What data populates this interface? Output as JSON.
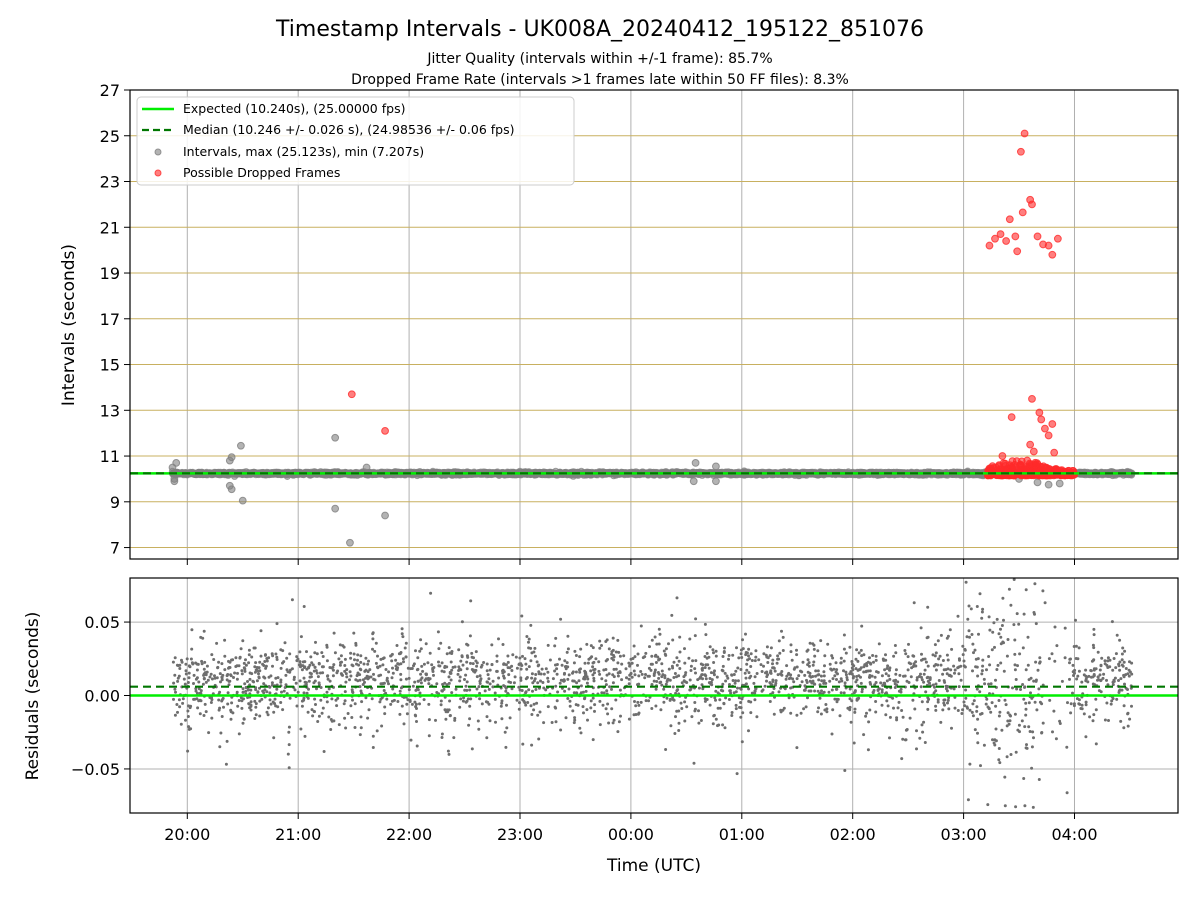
{
  "colors": {
    "expected": "#00ee00",
    "median": "#007700",
    "intervals": "#808080",
    "dropped": "#ff2a2a",
    "upper_grid": "#c8b060",
    "grid": "#b0b0b0"
  },
  "chart_data": [
    {
      "type": "scatter",
      "title": "Timestamp Intervals - UK008A_20240412_195122_851076",
      "subtitle_lines": [
        "Jitter Quality (intervals within +/-1 frame): 85.7%",
        "Dropped Frame Rate (intervals >1 frames late within 50 FF files): 8.3%"
      ],
      "ylabel": "Intervals (seconds)",
      "ylim": [
        6.5,
        27
      ],
      "yticks": [
        "7",
        "9",
        "11",
        "13",
        "15",
        "17",
        "19",
        "21",
        "23",
        "25",
        "27"
      ],
      "xlim": [
        "19:29",
        "04:56"
      ],
      "legend_placement": "upper-left",
      "lines": [
        {
          "name": "Expected (10.240s), (25.00000 fps)",
          "y": 10.24,
          "style": "solid"
        },
        {
          "name": "Median (10.246 +/- 0.026 s), (24.98536 +/- 0.06 fps)",
          "y": 10.246,
          "style": "dashed"
        }
      ],
      "series": [
        {
          "name": "Intervals, max (25.123s), min (7.207s)",
          "range_x": [
            "19:52",
            "04:31"
          ],
          "base_y": 10.24,
          "outliers": [
            {
              "x": "19:52",
              "y": 10.5
            },
            {
              "x": "19:53",
              "y": 9.9
            },
            {
              "x": "19:54",
              "y": 10.7
            },
            {
              "x": "19:53",
              "y": 10.0
            },
            {
              "x": "20:23",
              "y": 10.8
            },
            {
              "x": "20:24",
              "y": 10.95
            },
            {
              "x": "20:23",
              "y": 9.7
            },
            {
              "x": "20:24",
              "y": 9.55
            },
            {
              "x": "20:29",
              "y": 11.45
            },
            {
              "x": "20:30",
              "y": 9.05
            },
            {
              "x": "21:20",
              "y": 11.8
            },
            {
              "x": "21:20",
              "y": 8.7
            },
            {
              "x": "21:28",
              "y": 7.21
            },
            {
              "x": "21:47",
              "y": 8.4
            },
            {
              "x": "21:37",
              "y": 10.5
            },
            {
              "x": "00:35",
              "y": 10.7
            },
            {
              "x": "00:34",
              "y": 9.9
            },
            {
              "x": "00:46",
              "y": 10.55
            },
            {
              "x": "00:46",
              "y": 9.9
            },
            {
              "x": "03:40",
              "y": 9.85
            },
            {
              "x": "03:46",
              "y": 9.75
            },
            {
              "x": "03:52",
              "y": 9.8
            },
            {
              "x": "03:30",
              "y": 10.0
            }
          ]
        },
        {
          "name": "Possible Dropped Frames",
          "points": [
            {
              "x": "21:29",
              "y": 13.7
            },
            {
              "x": "21:47",
              "y": 12.1
            },
            {
              "x": "03:33",
              "y": 25.1
            },
            {
              "x": "03:31",
              "y": 24.3
            },
            {
              "x": "03:36",
              "y": 22.2
            },
            {
              "x": "03:37",
              "y": 22.0
            },
            {
              "x": "03:32",
              "y": 21.65
            },
            {
              "x": "03:25",
              "y": 21.35
            },
            {
              "x": "03:20",
              "y": 20.7
            },
            {
              "x": "03:17",
              "y": 20.5
            },
            {
              "x": "03:14",
              "y": 20.2
            },
            {
              "x": "03:23",
              "y": 20.4
            },
            {
              "x": "03:28",
              "y": 20.6
            },
            {
              "x": "03:29",
              "y": 19.95
            },
            {
              "x": "03:40",
              "y": 20.6
            },
            {
              "x": "03:43",
              "y": 20.25
            },
            {
              "x": "03:46",
              "y": 20.2
            },
            {
              "x": "03:48",
              "y": 19.8
            },
            {
              "x": "03:51",
              "y": 20.5
            },
            {
              "x": "03:37",
              "y": 13.5
            },
            {
              "x": "03:41",
              "y": 12.9
            },
            {
              "x": "03:42",
              "y": 12.6
            },
            {
              "x": "03:44",
              "y": 12.2
            },
            {
              "x": "03:46",
              "y": 11.9
            },
            {
              "x": "03:48",
              "y": 12.4
            },
            {
              "x": "03:26",
              "y": 12.7
            },
            {
              "x": "03:36",
              "y": 11.5
            },
            {
              "x": "03:38",
              "y": 11.2
            },
            {
              "x": "03:21",
              "y": 11.0
            },
            {
              "x": "03:49",
              "y": 11.15
            }
          ],
          "cluster": {
            "range_x": [
              "03:13",
              "04:00"
            ],
            "y_range": [
              10.15,
              10.9
            ]
          }
        }
      ]
    },
    {
      "type": "scatter",
      "ylabel": "Residuals (seconds)",
      "xlabel": "Time (UTC)",
      "ylim": [
        -0.08,
        0.08
      ],
      "yticks": [
        "−0.05",
        "0.00",
        "0.05"
      ],
      "ytick_values": [
        -0.05,
        0.0,
        0.05
      ],
      "xticks": [
        "20:00",
        "21:00",
        "22:00",
        "23:00",
        "00:00",
        "01:00",
        "02:00",
        "03:00",
        "04:00"
      ],
      "xlim": [
        "19:29",
        "04:56"
      ],
      "lines": [
        {
          "name": "Expected",
          "y": 0.0,
          "style": "solid"
        },
        {
          "name": "Median",
          "y": 0.006,
          "style": "dashed"
        }
      ],
      "series": [
        {
          "name": "Residuals",
          "range_x": [
            "19:52",
            "04:31"
          ],
          "band": [
            -0.03,
            0.045
          ],
          "gap_x": [
            "03:58",
            "03:45"
          ]
        }
      ]
    }
  ]
}
